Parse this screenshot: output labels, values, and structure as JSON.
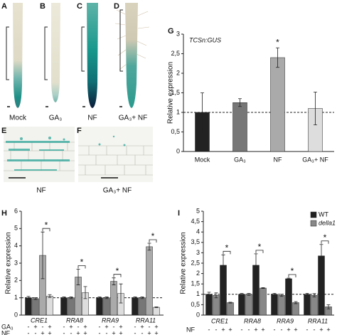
{
  "panels": {
    "labels": [
      "A",
      "B",
      "C",
      "D",
      "E",
      "F",
      "G",
      "H",
      "I"
    ],
    "root_captions": [
      "Mock",
      "GA₃",
      "NF",
      "GA₃+ NF"
    ],
    "section_captions": [
      "NF",
      "GA₃+ NF"
    ]
  },
  "chart_data": [
    {
      "type": "bar",
      "title": "TCSn:GUS",
      "y_label": "Relative expression",
      "categories": [
        "Mock",
        "GA₃",
        "NF",
        "GA₃+ NF"
      ],
      "values": [
        1.0,
        1.25,
        2.4,
        1.1
      ],
      "errors": [
        0.5,
        0.1,
        0.25,
        0.42
      ],
      "colors": [
        "#222222",
        "#777777",
        "#aaaaaa",
        "#dddddd"
      ],
      "ylim": [
        0,
        3
      ],
      "yticks": [
        0,
        {
          "value": 0.5,
          "label": "0,5"
        },
        1,
        {
          "value": 1.5,
          "label": "1,5"
        },
        2,
        {
          "value": 2.5,
          "label": "2,5"
        },
        3
      ],
      "reference_line": 1,
      "annotation": "*"
    },
    {
      "type": "grouped_bar",
      "y_label": "Relative expression",
      "categories": [
        "CRE1",
        "RRA8",
        "RRA9",
        "RRA11"
      ],
      "series": [
        {
          "color": "#222222",
          "values": [
            1.0,
            1.0,
            1.0,
            1.0
          ],
          "errors": [
            0.08,
            0.05,
            0.05,
            0.05
          ]
        },
        {
          "color": "#777777",
          "values": [
            0.95,
            1.0,
            1.0,
            1.0
          ],
          "errors": [
            0.05,
            0.05,
            0.05,
            0.05
          ]
        },
        {
          "color": "#aaaaaa",
          "values": [
            3.45,
            2.2,
            1.95,
            3.95
          ],
          "errors": [
            1.35,
            0.45,
            0.2,
            0.2
          ]
        },
        {
          "color": "#dddddd",
          "values": [
            1.1,
            1.3,
            1.25,
            0.45
          ],
          "errors": [
            0.08,
            0.35,
            0.55,
            0.02
          ]
        }
      ],
      "ylim": [
        0,
        6
      ],
      "yticks": [
        0,
        1,
        2,
        3,
        4,
        5,
        6
      ],
      "reference_line": 1,
      "annotation": "*",
      "treatments": [
        {
          "label": "GA₃",
          "signs": [
            "-",
            "+",
            "-",
            "+"
          ]
        },
        {
          "label": "NF",
          "signs": [
            "-",
            "-",
            "+",
            "+"
          ]
        }
      ]
    },
    {
      "type": "paired_bar",
      "y_label": "Relative expression",
      "categories": [
        "CRE1",
        "RRA8",
        "RRA9",
        "RRA11"
      ],
      "series": [
        {
          "name": "WT",
          "color": "#222222",
          "values": [
            [
              1.0,
              2.4
            ],
            [
              1.0,
              2.4
            ],
            [
              1.0,
              1.75
            ],
            [
              1.0,
              2.85
            ]
          ],
          "errors": [
            [
              0.1,
              0.5
            ],
            [
              0.05,
              0.55
            ],
            [
              0.05,
              0.03
            ],
            [
              0.05,
              0.55
            ]
          ]
        },
        {
          "name": "della1",
          "color": "#888888",
          "values": [
            [
              0.95,
              0.6
            ],
            [
              1.0,
              1.3
            ],
            [
              0.95,
              0.6
            ],
            [
              0.95,
              0.4
            ]
          ],
          "errors": [
            [
              0.12,
              0.02
            ],
            [
              0.05,
              0.02
            ],
            [
              0.05,
              0.05
            ],
            [
              0.08,
              0.1
            ]
          ]
        }
      ],
      "ylim": [
        0,
        5
      ],
      "yticks": [
        0,
        {
          "value": 0.5,
          "label": "0,5"
        },
        1,
        {
          "value": 1.5,
          "label": "1,5"
        },
        2,
        {
          "value": 2.5,
          "label": "2,5"
        },
        3,
        {
          "value": 3.5,
          "label": "3,5"
        },
        4,
        {
          "value": 4.5,
          "label": "4,5"
        },
        5
      ],
      "reference_line": 1,
      "annotation": "*",
      "treatments": [
        {
          "label": "NF",
          "signs": [
            "-",
            "-",
            "+",
            "+"
          ]
        }
      ]
    }
  ]
}
